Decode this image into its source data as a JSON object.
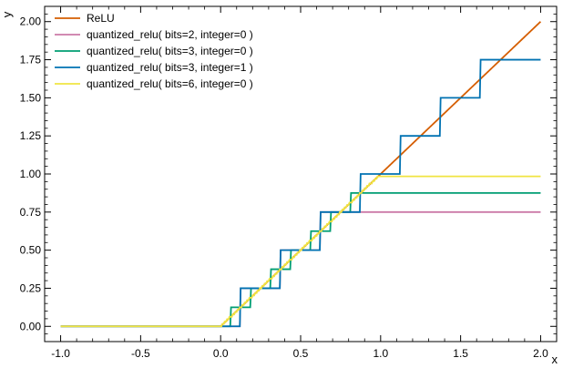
{
  "chart_data": {
    "type": "line",
    "xlabel": "x",
    "ylabel": "y",
    "xlim": [
      -1.1,
      2.1
    ],
    "ylim": [
      -0.1,
      2.1
    ],
    "x_ticks": [
      -1.0,
      -0.5,
      0.0,
      0.5,
      1.0,
      1.5,
      2.0
    ],
    "x_tick_labels": [
      "-1.0",
      "-0.5",
      "0.0",
      "0.5",
      "1.0",
      "1.5",
      "2.0"
    ],
    "y_ticks": [
      0.0,
      0.25,
      0.5,
      0.75,
      1.0,
      1.25,
      1.5,
      1.75,
      2.0
    ],
    "y_tick_labels": [
      "0.00",
      "0.25",
      "0.50",
      "0.75",
      "1.00",
      "1.25",
      "1.50",
      "1.75",
      "2.00"
    ],
    "legend_position": "top-left",
    "grid": false,
    "series": [
      {
        "name": "ReLU",
        "color": "#d55e00",
        "kind": "relu",
        "max": 2.0
      },
      {
        "name": "quantized_relu( bits=2, integer=0 )",
        "color": "#cc79a7",
        "kind": "quantized",
        "step": 0.25,
        "max": 0.75
      },
      {
        "name": "quantized_relu( bits=3, integer=0 )",
        "color": "#009e73",
        "kind": "quantized",
        "step": 0.125,
        "max": 0.875
      },
      {
        "name": "quantized_relu( bits=3, integer=1 )",
        "color": "#0072b2",
        "kind": "quantized",
        "step": 0.25,
        "max": 1.75
      },
      {
        "name": "quantized_relu( bits=6, integer=0 )",
        "color": "#f0e442",
        "kind": "quantized",
        "step": 0.015625,
        "max": 0.984375
      }
    ]
  }
}
